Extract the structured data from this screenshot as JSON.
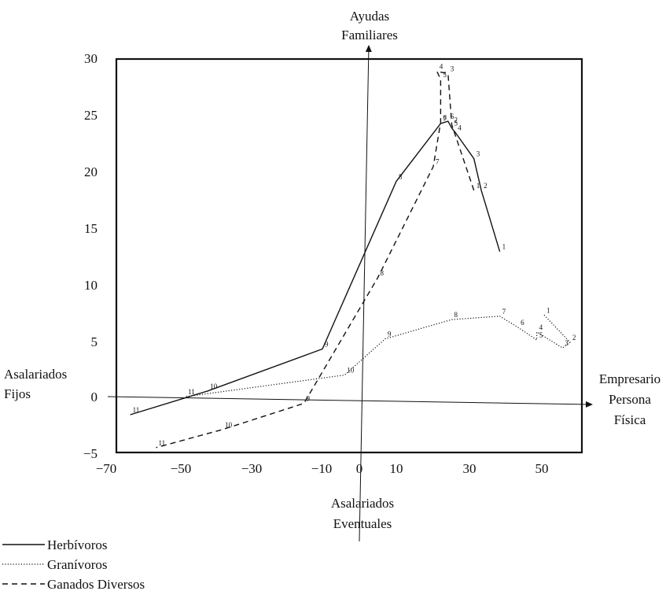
{
  "chart_data": {
    "type": "line",
    "xlim": [
      -70,
      60
    ],
    "ylim": [
      -5,
      30
    ],
    "x_ticks": [
      -70,
      -50,
      -30,
      -10,
      0,
      10,
      30,
      50
    ],
    "x_tick_labels": [
      "−70",
      "−50",
      "−30",
      "−10",
      "0",
      "10",
      "30",
      "50"
    ],
    "y_ticks": [
      -5,
      0,
      5,
      10,
      15,
      20,
      25,
      30
    ],
    "y_tick_labels": [
      "−5",
      "0",
      "5",
      "10",
      "15",
      "20",
      "25",
      "30"
    ],
    "grid": false,
    "pole_labels": {
      "top": [
        "Ayudas",
        "Familiares"
      ],
      "left": [
        "Asalariados",
        "Fijos"
      ],
      "right": [
        "Empresario",
        "Persona",
        "Física"
      ],
      "bottom": [
        "Asalariados",
        "Eventuales"
      ]
    },
    "series": [
      {
        "name": "Herbívoros",
        "style": "solid",
        "points": [
          {
            "x": 38,
            "y": 12.8,
            "label": "1"
          },
          {
            "x": 33,
            "y": 18.2,
            "label": "2"
          },
          {
            "x": 31,
            "y": 21,
            "label": "3"
          },
          {
            "x": 26,
            "y": 23.3,
            "label": "4"
          },
          {
            "x": 25,
            "y": 23.7,
            "label": "5"
          },
          {
            "x": 24,
            "y": 24.3,
            "label": "6"
          },
          {
            "x": 22,
            "y": 24.1,
            "label": "7"
          },
          {
            "x": 10,
            "y": 19,
            "label": "8"
          },
          {
            "x": -10,
            "y": 4.2,
            "label": "9"
          },
          {
            "x": -41,
            "y": 0.5,
            "label": "10"
          },
          {
            "x": -62,
            "y": -1.6,
            "label": "11"
          }
        ]
      },
      {
        "name": "Granívoros",
        "style": "dotted",
        "points": [
          {
            "x": 50,
            "y": 7.2,
            "label": "1"
          },
          {
            "x": 57,
            "y": 4.8,
            "label": "2"
          },
          {
            "x": 55,
            "y": 4.3,
            "label": "3"
          },
          {
            "x": 48,
            "y": 5.7,
            "label": "4"
          },
          {
            "x": 48,
            "y": 5,
            "label": "5"
          },
          {
            "x": 43,
            "y": 6.1,
            "label": "6"
          },
          {
            "x": 38,
            "y": 7.1,
            "label": "7"
          },
          {
            "x": 25,
            "y": 6.8,
            "label": "8"
          },
          {
            "x": 7,
            "y": 5.1,
            "label": "9"
          },
          {
            "x": -4,
            "y": 1.9,
            "label": "10"
          },
          {
            "x": -47,
            "y": 0,
            "label": "11"
          }
        ]
      },
      {
        "name": "Ganados Diversos",
        "style": "dashed",
        "points": [
          {
            "x": 31,
            "y": 18.2,
            "label": "1"
          },
          {
            "x": 25,
            "y": 24,
            "label": "2"
          },
          {
            "x": 24,
            "y": 28.5,
            "label": "3"
          },
          {
            "x": 21,
            "y": 28.7,
            "label": "4"
          },
          {
            "x": 22,
            "y": 28,
            "label": "5"
          },
          {
            "x": 22,
            "y": 24.2,
            "label": "6"
          },
          {
            "x": 20,
            "y": 20.3,
            "label": "7"
          },
          {
            "x": 5,
            "y": 10.5,
            "label": "8"
          },
          {
            "x": -15,
            "y": -0.6,
            "label": "9"
          },
          {
            "x": -37,
            "y": -2.9,
            "label": "10"
          },
          {
            "x": -55,
            "y": -4.5,
            "label": "11"
          }
        ]
      }
    ]
  }
}
